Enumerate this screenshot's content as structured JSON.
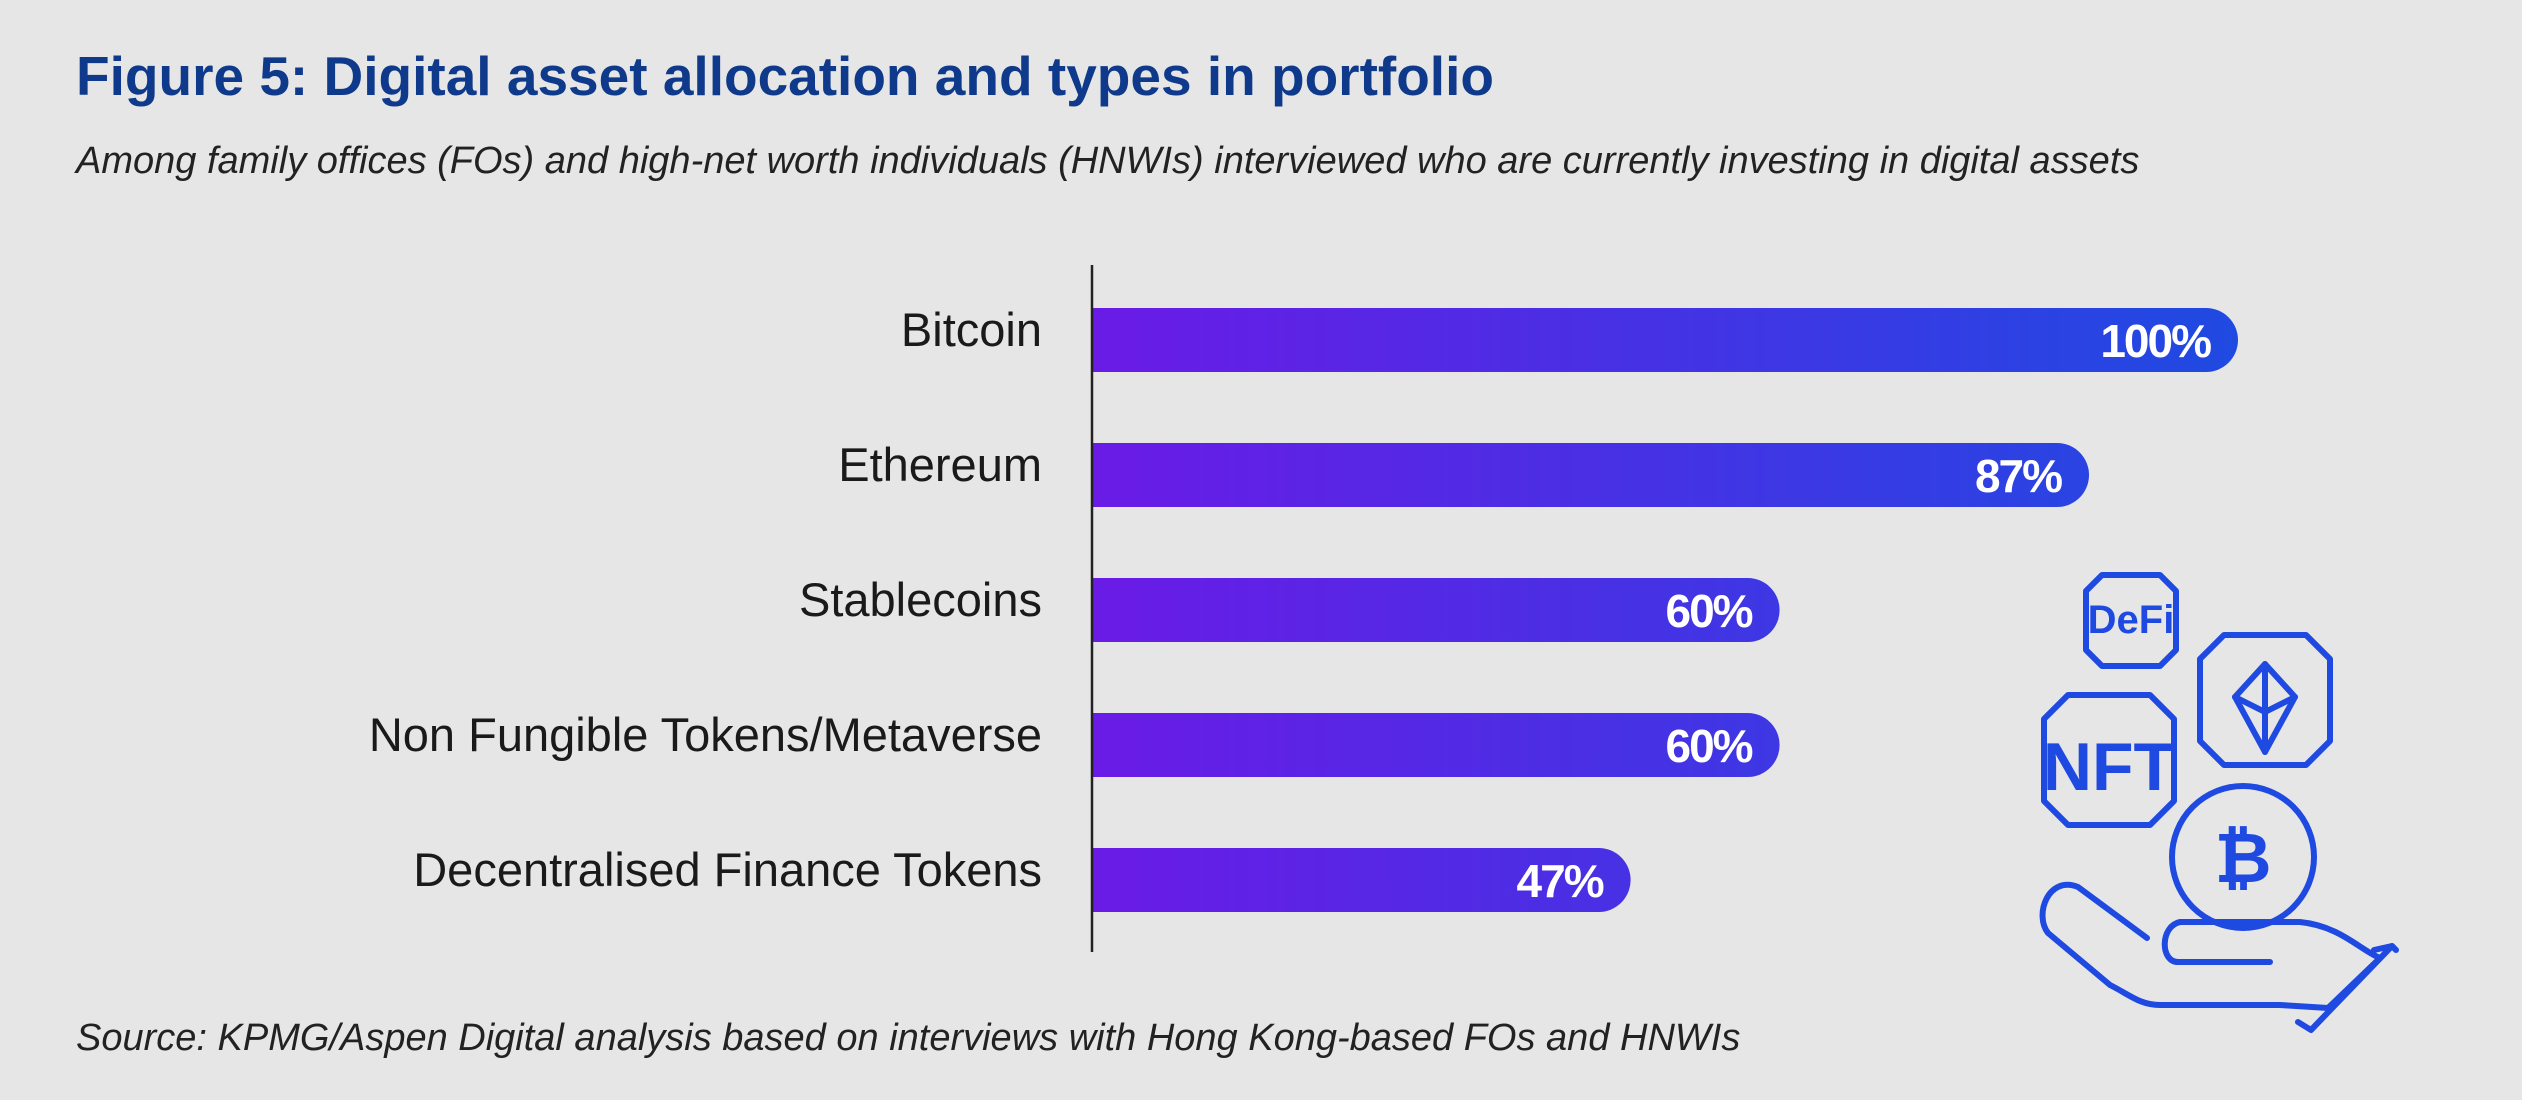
{
  "title": "Figure 5: Digital asset allocation and types in portfolio",
  "subtitle": "Among family offices (FOs) and high-net worth individuals (HNWIs) interviewed who are currently investing in digital assets",
  "source": "Source: KPMG/Aspen Digital analysis based on interviews with Hong Kong-based FOs and HNWIs",
  "chart_data": {
    "type": "bar",
    "orientation": "horizontal",
    "title": "Figure 5: Digital asset allocation and types in portfolio",
    "categories": [
      "Bitcoin",
      "Ethereum",
      "Stablecoins",
      "Non Fungible Tokens/Metaverse",
      "Decentralised Finance Tokens"
    ],
    "values": [
      100,
      87,
      60,
      60,
      47
    ],
    "value_labels": [
      "100%",
      "87%",
      "60%",
      "60%",
      "47%"
    ],
    "unit": "%",
    "xlim": [
      0,
      100
    ],
    "grid": false,
    "legend": "none",
    "colors": {
      "bar_gradient_start": "#6a1be6",
      "bar_gradient_end": "#1f4ae2",
      "label_text": "#ffffff",
      "axis_line": "#222222"
    }
  },
  "illustration": {
    "icon_names": [
      "defi-badge-icon",
      "ethereum-badge-icon",
      "nft-badge-icon",
      "bitcoin-coin-icon",
      "hand-icon"
    ],
    "defi_text": "DeFi",
    "nft_text": "NFT",
    "color": "#1f4ae2"
  }
}
